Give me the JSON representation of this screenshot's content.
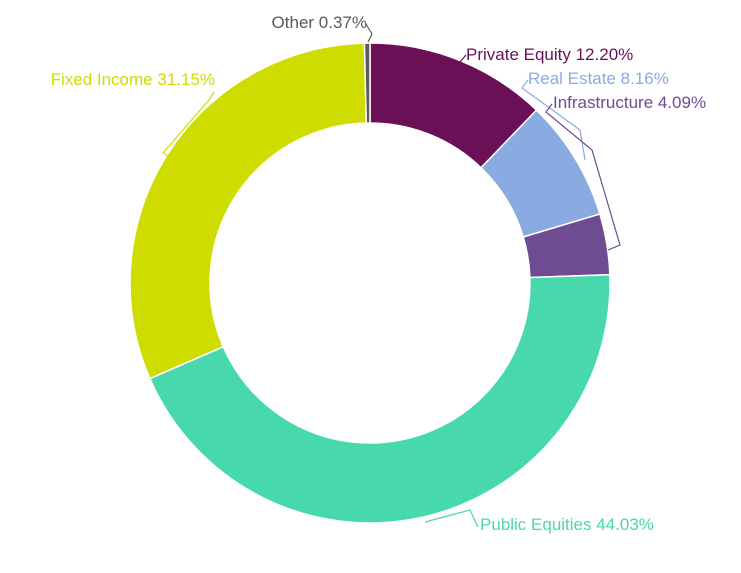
{
  "chart_data": {
    "type": "pie",
    "donut": true,
    "title": "",
    "slices": [
      {
        "label": "Private Equity",
        "value": 12.2,
        "text": "Private Equity 12.20%",
        "color": "#6b0f57"
      },
      {
        "label": "Real Estate",
        "value": 8.16,
        "text": "Real Estate 8.16%",
        "color": "#8aaae2"
      },
      {
        "label": "Infrastructure",
        "value": 4.09,
        "text": "Infrastructure 4.09%",
        "color": "#6e4c92"
      },
      {
        "label": "Public Equities",
        "value": 44.03,
        "text": "Public Equities 44.03%",
        "color": "#47d8ae"
      },
      {
        "label": "Fixed Income",
        "value": 31.15,
        "text": "Fixed Income 31.15%",
        "color": "#cedc00"
      },
      {
        "label": "Other",
        "value": 0.37,
        "text": "Other 0.37%",
        "color": "#5a5a5a"
      }
    ]
  }
}
